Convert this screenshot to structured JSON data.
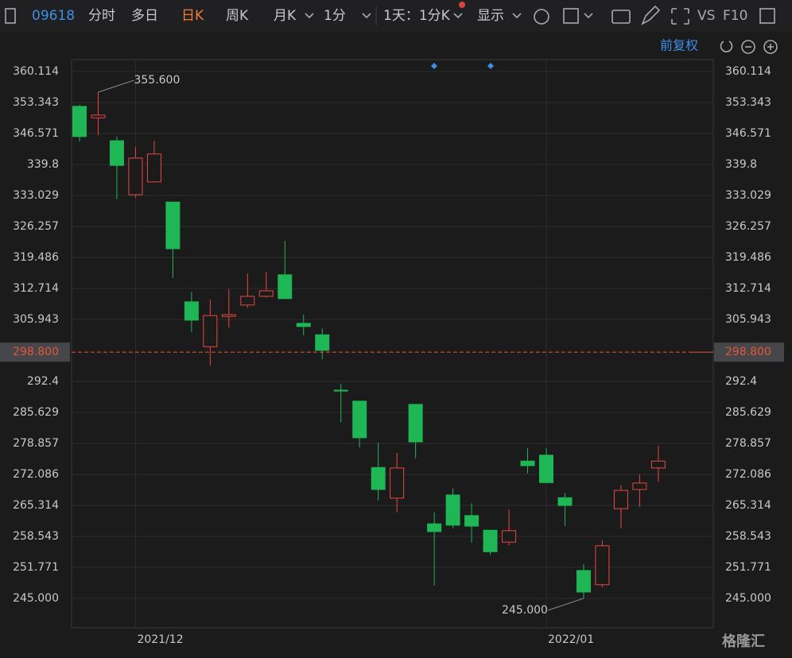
{
  "toolbar": {
    "code": "09618",
    "items": [
      "分时",
      "多日",
      "日K",
      "周K",
      "月K",
      "1分",
      "1天：1分K",
      "显示"
    ],
    "active": "日K",
    "right": [
      "VS",
      "F10"
    ]
  },
  "adjust": "前复权",
  "watermark": "格隆汇",
  "chart_data": {
    "type": "candlestick",
    "categories": [
      null,
      null,
      null,
      "2021/12",
      null,
      null,
      null,
      null,
      null,
      null,
      null,
      null,
      null,
      null,
      null,
      null,
      null,
      null,
      null,
      null,
      null,
      null,
      null,
      null,
      null,
      "2022/01",
      null,
      null,
      null,
      null,
      null,
      null
    ],
    "open": [
      352.5,
      350.0,
      345.0,
      333.2,
      336.0,
      331.6,
      309.8,
      300.0,
      306.6,
      309.1,
      311.0,
      315.7,
      305.1,
      302.6,
      290.5,
      288.1,
      273.6,
      266.9,
      287.4,
      261.3,
      267.6,
      263.1,
      259.9,
      257.3,
      275.0,
      276.3,
      267.0,
      251.1,
      248.0,
      264.6,
      268.8,
      273.5
    ],
    "high": [
      352.8,
      355.6,
      345.9,
      343.6,
      345.0,
      331.6,
      312.0,
      310.3,
      312.5,
      316.0,
      316.4,
      323.1,
      307.0,
      304.0,
      291.9,
      288.1,
      279.0,
      276.8,
      287.4,
      263.8,
      269.1,
      265.8,
      259.9,
      264.4,
      277.8,
      277.8,
      268.1,
      252.5,
      257.7,
      269.8,
      272.1,
      278.3
    ],
    "low": [
      344.8,
      346.2,
      332.2,
      332.5,
      336.0,
      315.0,
      303.2,
      295.9,
      304.2,
      308.5,
      310.8,
      310.5,
      302.5,
      297.3,
      283.5,
      278.0,
      266.4,
      263.8,
      275.6,
      247.8,
      260.3,
      257.2,
      254.5,
      256.6,
      272.3,
      270.3,
      260.8,
      245.0,
      247.4,
      260.3,
      265.0,
      270.5
    ],
    "close": [
      345.9,
      350.6,
      339.6,
      341.2,
      342.1,
      321.4,
      305.8,
      306.8,
      307.0,
      311.0,
      312.2,
      310.5,
      304.4,
      299.2,
      290.3,
      280.1,
      268.8,
      273.5,
      279.2,
      259.6,
      261.0,
      260.8,
      255.2,
      259.8,
      274.0,
      270.3,
      265.3,
      246.4,
      256.5,
      268.6,
      270.2,
      275.0
    ],
    "up_color": "#e8473f",
    "down_color": "#1fb655",
    "ylim": [
      238.58,
      362.72
    ],
    "yticks": [
      {
        "value": 245,
        "label": "245.000"
      },
      251.771,
      258.543,
      265.314,
      272.086,
      278.857,
      285.629,
      292.4,
      305.943,
      312.714,
      319.486,
      326.257,
      333.029,
      339.8,
      346.571,
      353.343,
      360.114
    ],
    "grid": true,
    "annotations": [
      {
        "value": 355.6,
        "label": "355.600"
      },
      {
        "value": 245,
        "label": "245.000"
      }
    ],
    "last_price": {
      "value": 298.8,
      "label": "298.800",
      "color": "#e8553a"
    }
  }
}
